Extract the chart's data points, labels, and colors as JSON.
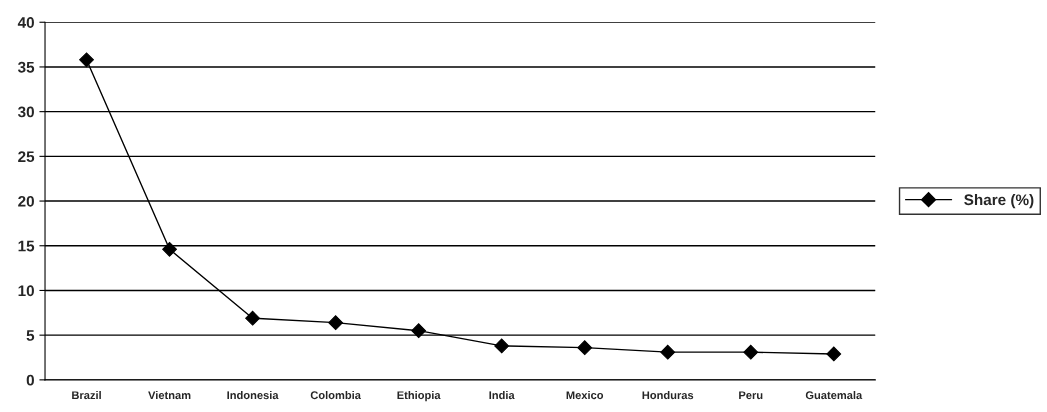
{
  "chart_data": {
    "type": "line",
    "categories": [
      "Brazil",
      "Vietnam",
      "Indonesia",
      "Colombia",
      "Ethiopia",
      "India",
      "Mexico",
      "Honduras",
      "Peru",
      "Guatemala"
    ],
    "series": [
      {
        "name": "Share (%)",
        "color": "#000000",
        "values": [
          35.8,
          14.6,
          6.9,
          6.4,
          5.5,
          3.8,
          3.6,
          3.1,
          3.1,
          2.9
        ]
      }
    ],
    "ylim": [
      0,
      40
    ],
    "yticks": [
      0,
      5,
      10,
      15,
      20,
      25,
      30,
      35,
      40
    ],
    "grid": "y",
    "legend": "right",
    "marker": "diamond",
    "line_style": "solid"
  }
}
